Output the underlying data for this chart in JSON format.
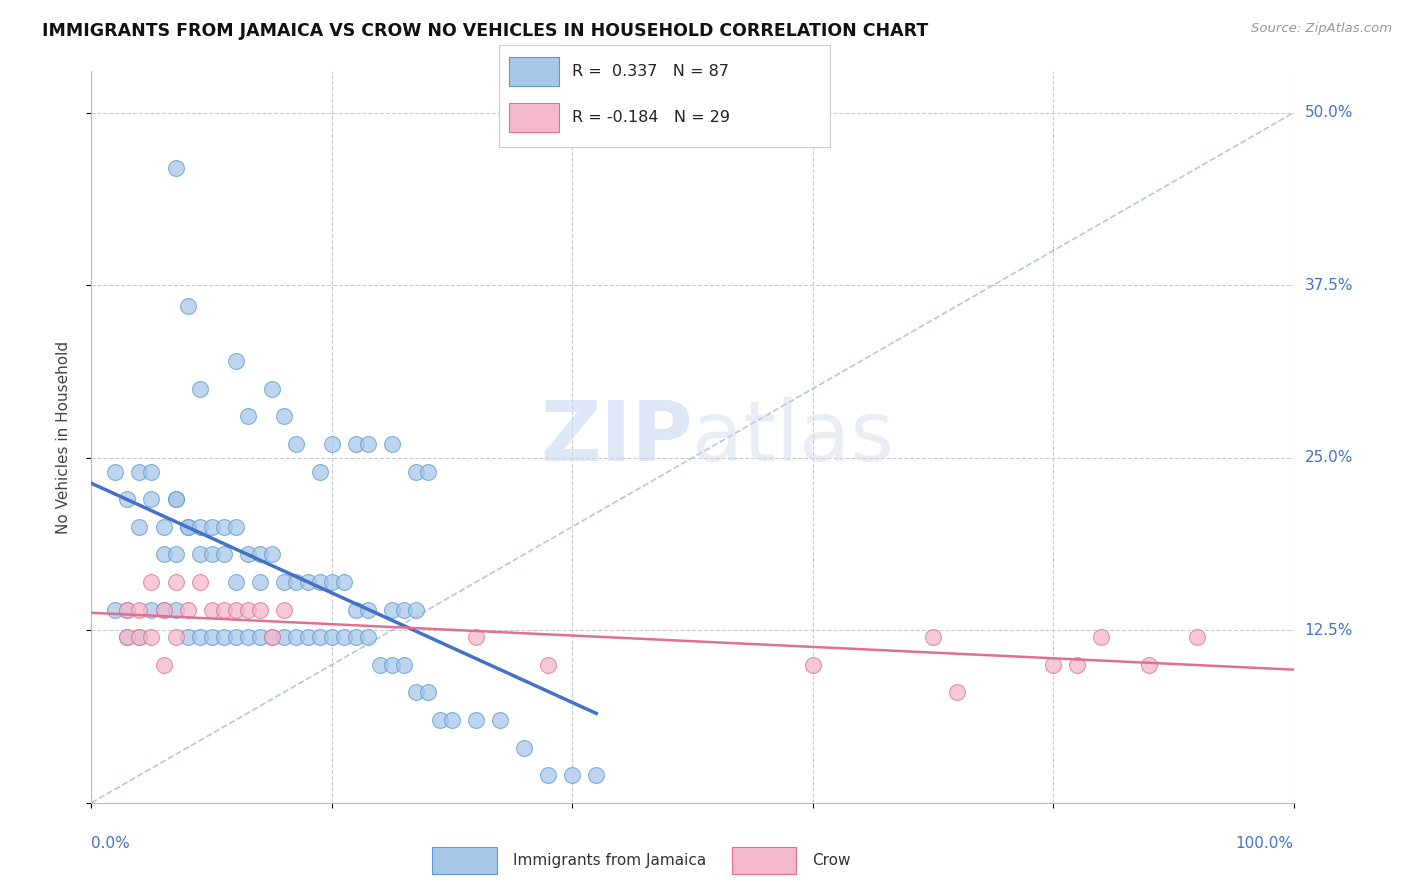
{
  "title": "IMMIGRANTS FROM JAMAICA VS CROW NO VEHICLES IN HOUSEHOLD CORRELATION CHART",
  "source": "Source: ZipAtlas.com",
  "watermark": "ZIPatlas",
  "ylabel": "No Vehicles in Household",
  "legend_labels": [
    "Immigrants from Jamaica",
    "Crow"
  ],
  "r_jamaica": 0.337,
  "n_jamaica": 87,
  "r_crow": -0.184,
  "n_crow": 29,
  "color_jamaica_fill": "#a8c8e8",
  "color_jamaica_edge": "#5b9bd5",
  "color_crow_fill": "#f4b8cc",
  "color_crow_edge": "#e07090",
  "color_jamaica_line": "#4472c4",
  "color_crow_line": "#e07090",
  "color_diag_line": "#a0b8d8",
  "background_color": "#ffffff",
  "jamaica_x": [
    7,
    8,
    9,
    12,
    13,
    15,
    16,
    17,
    19,
    20,
    22,
    23,
    25,
    27,
    28,
    2,
    3,
    4,
    4,
    5,
    5,
    6,
    6,
    7,
    7,
    7,
    8,
    8,
    9,
    9,
    10,
    10,
    11,
    11,
    12,
    12,
    13,
    14,
    14,
    15,
    16,
    17,
    18,
    19,
    20,
    21,
    22,
    23,
    25,
    26,
    27,
    2,
    3,
    3,
    4,
    5,
    6,
    7,
    8,
    9,
    10,
    11,
    12,
    13,
    14,
    15,
    16,
    17,
    18,
    19,
    20,
    21,
    22,
    23,
    24,
    25,
    26,
    27,
    28,
    29,
    30,
    32,
    34,
    36,
    38,
    40,
    42
  ],
  "jamaica_y": [
    46,
    36,
    30,
    32,
    28,
    30,
    28,
    26,
    24,
    26,
    26,
    26,
    26,
    24,
    24,
    24,
    22,
    20,
    24,
    22,
    24,
    18,
    20,
    22,
    18,
    22,
    20,
    20,
    18,
    20,
    18,
    20,
    20,
    18,
    16,
    20,
    18,
    18,
    16,
    18,
    16,
    16,
    16,
    16,
    16,
    16,
    14,
    14,
    14,
    14,
    14,
    14,
    12,
    14,
    12,
    14,
    14,
    14,
    12,
    12,
    12,
    12,
    12,
    12,
    12,
    12,
    12,
    12,
    12,
    12,
    12,
    12,
    12,
    12,
    10,
    10,
    10,
    8,
    8,
    6,
    6,
    6,
    6,
    4,
    2,
    2,
    2
  ],
  "crow_x": [
    3,
    4,
    5,
    6,
    7,
    8,
    9,
    10,
    11,
    12,
    13,
    14,
    15,
    16,
    3,
    4,
    5,
    6,
    7,
    32,
    38,
    60,
    70,
    72,
    80,
    82,
    84,
    88,
    92
  ],
  "crow_y": [
    14,
    14,
    16,
    14,
    16,
    14,
    16,
    14,
    14,
    14,
    14,
    14,
    12,
    14,
    12,
    12,
    12,
    10,
    12,
    12,
    10,
    10,
    12,
    8,
    10,
    10,
    12,
    10,
    12
  ]
}
